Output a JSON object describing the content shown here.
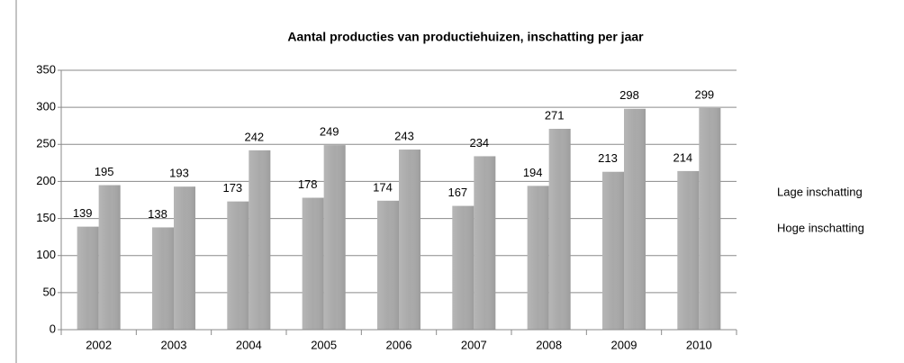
{
  "chart_data": {
    "type": "bar",
    "title": "Aantal producties van productiehuizen, inschatting per jaar",
    "categories": [
      "2002",
      "2003",
      "2004",
      "2005",
      "2006",
      "2007",
      "2008",
      "2009",
      "2010"
    ],
    "series": [
      {
        "name": "Lage inschatting",
        "color": "#a9a9a9",
        "values": [
          139,
          138,
          173,
          178,
          174,
          167,
          194,
          213,
          214
        ]
      },
      {
        "name": "Hoge inschatting",
        "color": "#a9a9a9",
        "values": [
          195,
          193,
          242,
          249,
          243,
          234,
          271,
          298,
          299
        ]
      }
    ],
    "ylim": [
      0,
      350
    ],
    "yticks": [
      0,
      50,
      100,
      150,
      200,
      250,
      300,
      350
    ],
    "grid": true,
    "legend": "right"
  }
}
